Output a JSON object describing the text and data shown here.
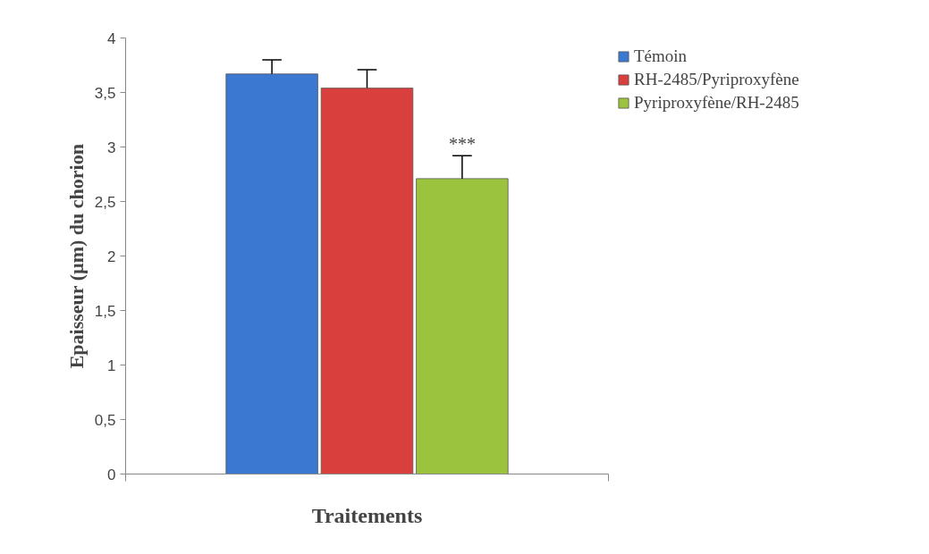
{
  "chart_data": {
    "type": "bar",
    "xlabel": "Traitements",
    "ylabel": "Epaisseur (µm) du chorion",
    "categories": [
      null
    ],
    "series": [
      {
        "name": "Témoin",
        "color": "#3b78d2",
        "values": [
          3.67
        ],
        "errors": [
          [
            3.67,
            3.8
          ]
        ]
      },
      {
        "name": "RH-2485/Pyriproxyfène",
        "color": "#d9403d",
        "values": [
          3.54
        ],
        "errors": [
          [
            3.54,
            3.71
          ]
        ]
      },
      {
        "name": "Pyriproxyfène/RH-2485",
        "color": "#9cc33d",
        "values": [
          2.71
        ],
        "errors": [
          [
            2.71,
            2.92
          ]
        ]
      }
    ],
    "annotations": [
      "***"
    ],
    "ylim": [
      0,
      4
    ],
    "yticks": [
      0,
      {
        "value": 0.5,
        "label": "0,5"
      },
      1,
      {
        "value": 1.5,
        "label": "1,5"
      },
      2,
      {
        "value": 2.5,
        "label": "2,5"
      },
      3,
      {
        "value": 3.5,
        "label": "3,5"
      },
      4
    ],
    "legend": "top right",
    "grid": false
  }
}
